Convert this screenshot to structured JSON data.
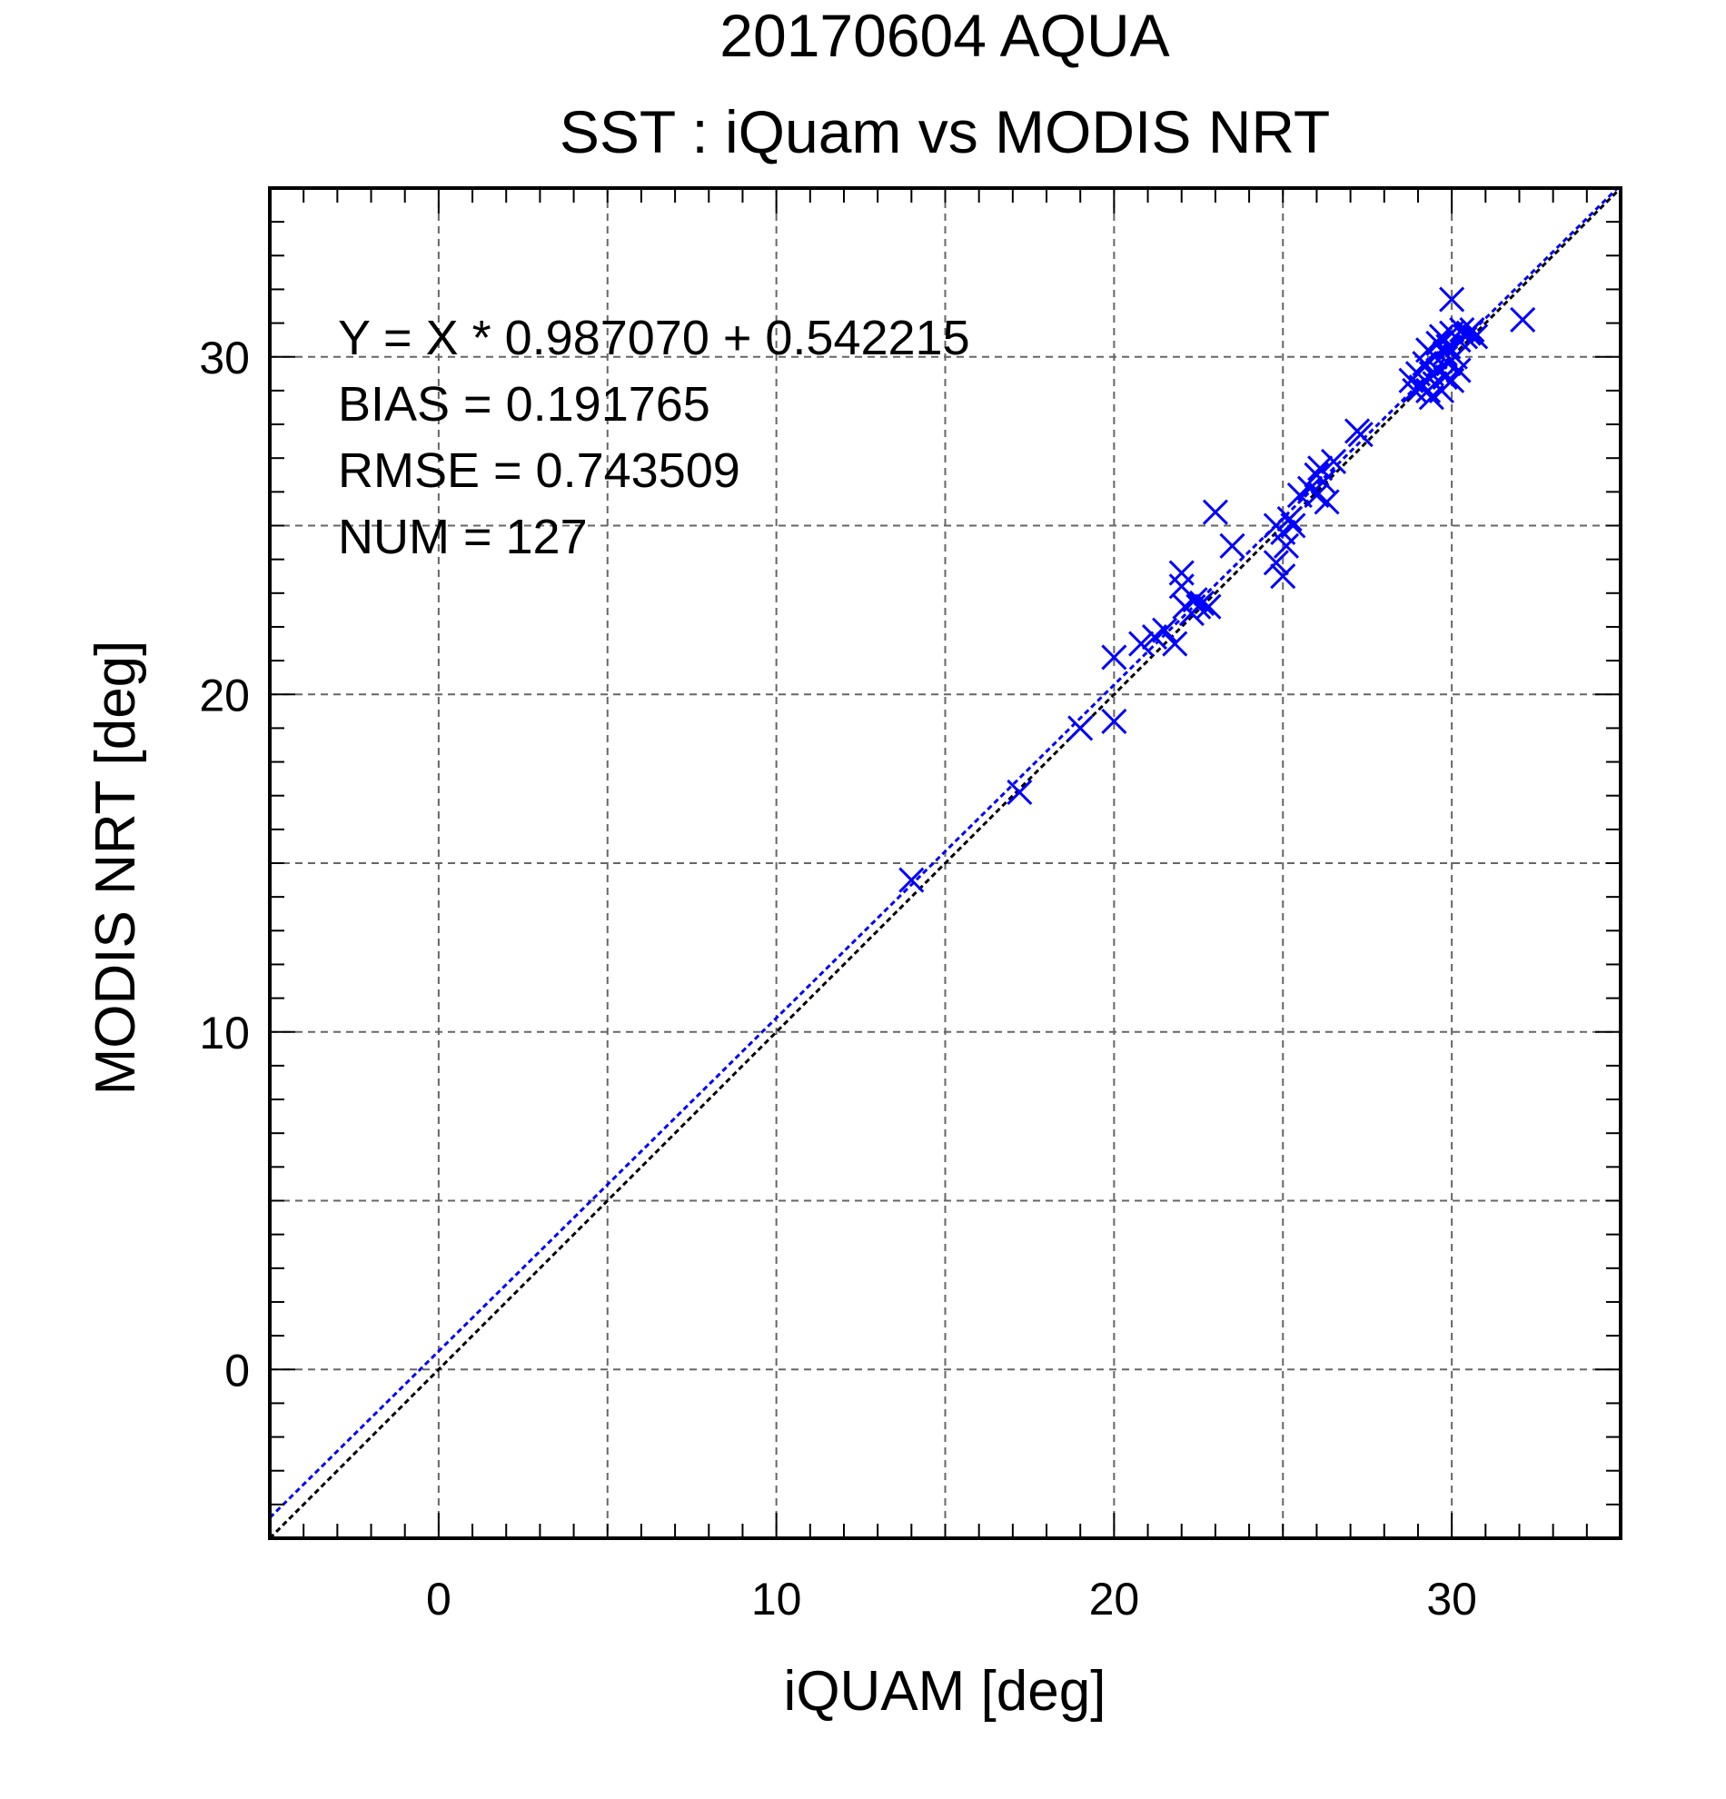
{
  "chart_data": {
    "type": "scatter",
    "title": "20170604 AQUA",
    "subtitle": "SST : iQuam vs MODIS NRT",
    "xlabel": "iQUAM [deg]",
    "ylabel": "MODIS NRT [deg]",
    "xlim": [
      -5,
      35
    ],
    "ylim": [
      -5,
      35
    ],
    "major_ticks": [
      0,
      10,
      20,
      30
    ],
    "major_tick_labels": [
      "0",
      "10",
      "20",
      "30"
    ],
    "minor_tick_step": 1,
    "grid_step": 5,
    "grid": true,
    "point_color": "#0000ff",
    "regression_color": "#0000ff",
    "identity_color": "#000000",
    "stats": [
      "Y = X * 0.987070 + 0.542215",
      "BIAS = 0.191765",
      "RMSE = 0.743509",
      "NUM = 127"
    ],
    "regression": {
      "slope": 0.98707,
      "intercept": 0.542215
    },
    "series": [
      {
        "marker": "x",
        "points": [
          [
            14.0,
            14.5
          ],
          [
            17.2,
            17.1
          ],
          [
            19.0,
            19.0
          ],
          [
            20.0,
            21.1
          ],
          [
            20.0,
            19.2
          ],
          [
            20.8,
            21.5
          ],
          [
            21.2,
            21.7
          ],
          [
            21.5,
            21.9
          ],
          [
            21.8,
            21.5
          ],
          [
            22.0,
            23.6
          ],
          [
            22.0,
            23.2
          ],
          [
            22.1,
            22.6
          ],
          [
            22.3,
            22.4
          ],
          [
            22.4,
            22.8
          ],
          [
            22.5,
            22.6
          ],
          [
            22.6,
            22.7
          ],
          [
            22.8,
            22.6
          ],
          [
            23.0,
            25.4
          ],
          [
            23.5,
            24.4
          ],
          [
            24.8,
            23.9
          ],
          [
            24.8,
            25.0
          ],
          [
            25.0,
            23.5
          ],
          [
            25.1,
            24.4
          ],
          [
            25.0,
            24.8
          ],
          [
            25.2,
            25.2
          ],
          [
            25.3,
            25.0
          ],
          [
            25.5,
            25.9
          ],
          [
            25.8,
            26.1
          ],
          [
            26.0,
            26.5
          ],
          [
            26.1,
            26.7
          ],
          [
            26.0,
            25.9
          ],
          [
            26.2,
            26.3
          ],
          [
            26.3,
            25.7
          ],
          [
            26.5,
            26.9
          ],
          [
            27.2,
            27.8
          ],
          [
            27.3,
            27.7
          ],
          [
            28.8,
            29.3
          ],
          [
            28.9,
            29.0
          ],
          [
            29.0,
            29.5
          ],
          [
            29.1,
            29.1
          ],
          [
            29.2,
            29.8
          ],
          [
            29.3,
            30.2
          ],
          [
            29.3,
            29.0
          ],
          [
            29.4,
            29.5
          ],
          [
            29.4,
            28.8
          ],
          [
            29.5,
            30.0
          ],
          [
            29.5,
            29.2
          ],
          [
            29.6,
            30.4
          ],
          [
            29.6,
            29.6
          ],
          [
            29.7,
            30.6
          ],
          [
            29.7,
            29.0
          ],
          [
            29.8,
            30.1
          ],
          [
            29.8,
            29.4
          ],
          [
            29.9,
            30.3
          ],
          [
            29.9,
            29.8
          ],
          [
            30.0,
            31.7
          ],
          [
            30.0,
            30.7
          ],
          [
            30.0,
            29.3
          ],
          [
            30.1,
            30.0
          ],
          [
            30.2,
            30.5
          ],
          [
            30.2,
            29.6
          ],
          [
            30.3,
            30.8
          ],
          [
            30.4,
            30.6
          ],
          [
            30.5,
            30.7
          ],
          [
            30.6,
            30.8
          ],
          [
            30.7,
            30.6
          ],
          [
            32.1,
            31.1
          ]
        ]
      }
    ]
  }
}
